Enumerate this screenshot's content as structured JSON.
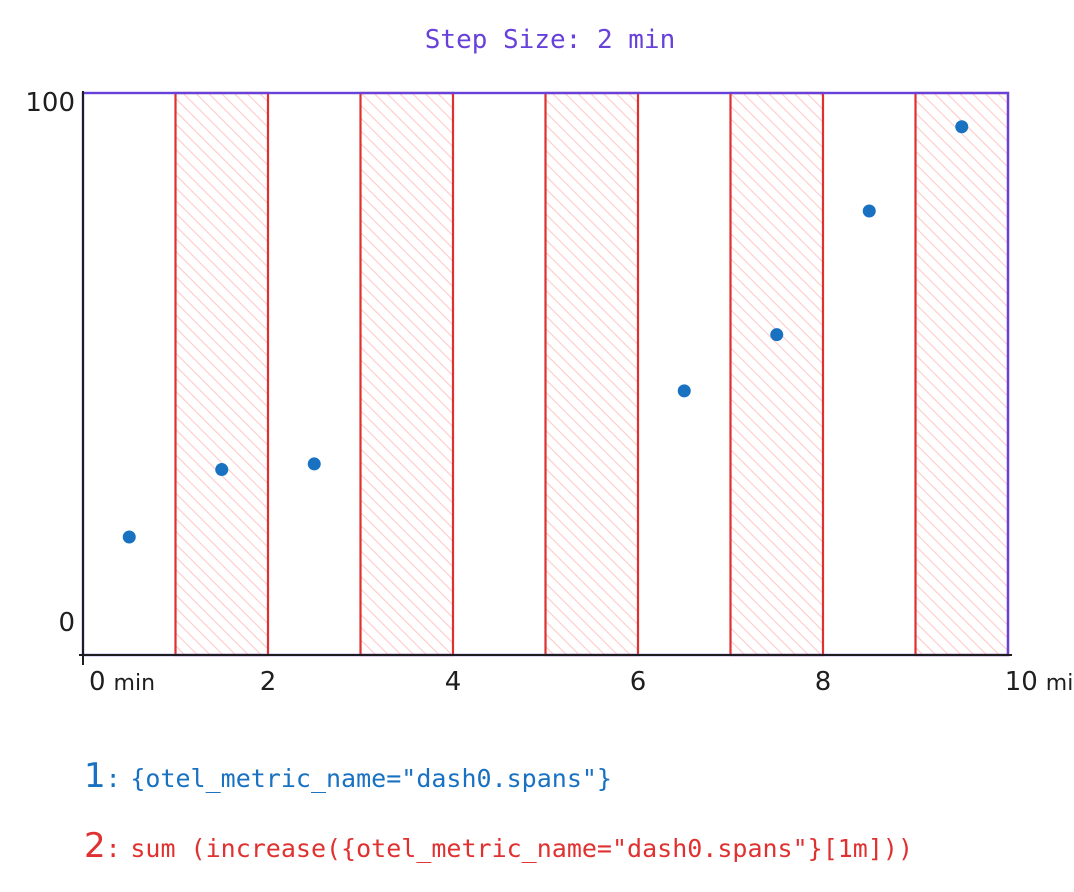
{
  "chart_data": {
    "type": "scatter",
    "title": "Step Size: 2 min",
    "xlim": [
      0,
      10
    ],
    "ylim": [
      0,
      100
    ],
    "x_ticks": [
      {
        "value": 0,
        "label": "0",
        "unit": "min"
      },
      {
        "value": 2,
        "label": "2",
        "unit": ""
      },
      {
        "value": 4,
        "label": "4",
        "unit": ""
      },
      {
        "value": 6,
        "label": "6",
        "unit": ""
      },
      {
        "value": 8,
        "label": "8",
        "unit": ""
      },
      {
        "value": 10,
        "label": "10",
        "unit": "min"
      }
    ],
    "y_ticks": [
      {
        "value": 0,
        "label": "0"
      },
      {
        "value": 100,
        "label": "100"
      }
    ],
    "step_windows": [
      {
        "start": 1,
        "end": 2
      },
      {
        "start": 3,
        "end": 4
      },
      {
        "start": 5,
        "end": 6
      },
      {
        "start": 7,
        "end": 8
      },
      {
        "start": 9,
        "end": 10
      }
    ],
    "points": [
      {
        "x": 0.5,
        "y": 21
      },
      {
        "x": 1.5,
        "y": 33
      },
      {
        "x": 2.5,
        "y": 34
      },
      {
        "x": 6.5,
        "y": 47
      },
      {
        "x": 7.5,
        "y": 57
      },
      {
        "x": 8.5,
        "y": 79
      },
      {
        "x": 9.5,
        "y": 94
      }
    ],
    "colors": {
      "frame": "#6741d9",
      "window_stroke": "#e03131",
      "window_hatch": "#ffc9c9",
      "point": "#1971c2",
      "axis": "#1e1e1e"
    }
  },
  "legend": [
    {
      "number": "1",
      "separator": ":",
      "text": "{otel_metric_name=\"dash0.spans\"}",
      "color": "#1971c2"
    },
    {
      "number": "2",
      "separator": ":",
      "text": "sum (increase({otel_metric_name=\"dash0.spans\"}[1m]))",
      "color": "#e03131"
    }
  ]
}
